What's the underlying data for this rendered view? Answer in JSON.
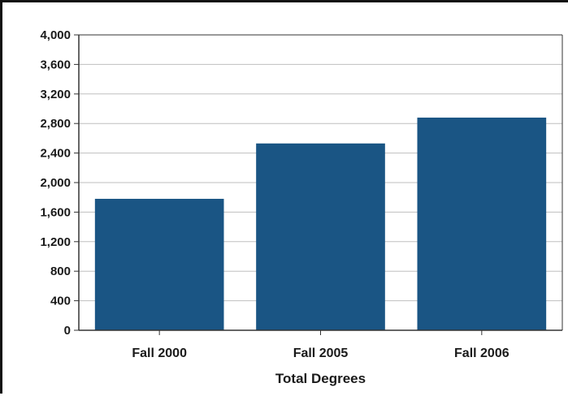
{
  "chart_data": {
    "type": "bar",
    "title": "",
    "xlabel": "Total Degrees",
    "ylabel": "",
    "categories": [
      "Fall 2000",
      "Fall 2005",
      "Fall 2006"
    ],
    "values": [
      1780,
      2530,
      2880
    ],
    "ylim": [
      0,
      4000
    ],
    "yticks": [
      0,
      400,
      800,
      1200,
      1600,
      2000,
      2400,
      2800,
      3200,
      3600,
      4000
    ],
    "ytick_labels": [
      "0",
      "400",
      "800",
      "1,200",
      "1,600",
      "2,000",
      "2,400",
      "2,800",
      "3,200",
      "3,600",
      "4,000"
    ],
    "grid": true,
    "legend": "none",
    "bar_color": "#1a5584",
    "grid_color": "#bfbfbf"
  }
}
